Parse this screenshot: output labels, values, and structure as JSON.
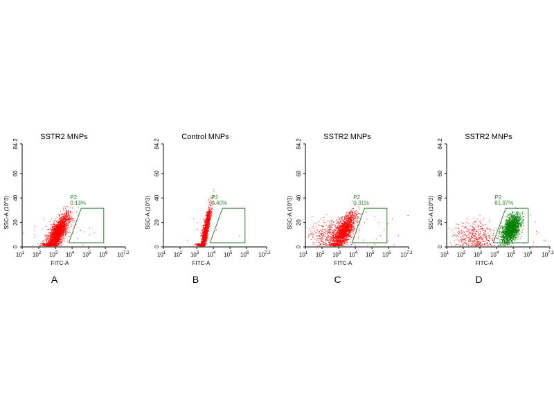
{
  "chart_data": [
    {
      "type": "scatter",
      "panel_label": "A",
      "title": "SSTR2 MNPs",
      "xlabel": "FITC-A",
      "ylabel": "SSC-A (10^3)",
      "xscale": "log10",
      "xlim_log10": [
        1,
        7.2
      ],
      "ylim": [
        0,
        84.2
      ],
      "xticks": [
        "10^1",
        "10^2",
        "10^3",
        "10^4",
        "10^5",
        "10^6",
        "10^7.2"
      ],
      "yticks": [
        0,
        20,
        40,
        60,
        84.2
      ],
      "gate": {
        "name": "P2",
        "percent": "0.13%",
        "polygon_log10x_y": [
          [
            3.8,
            3.4
          ],
          [
            4.55,
            31.6
          ],
          [
            5.9,
            31.6
          ],
          [
            5.9,
            3.4
          ]
        ]
      },
      "populations": [
        {
          "color": "#ff0000",
          "center_log10x": 3.1,
          "center_y": 11,
          "spread_log10x": 0.35,
          "spread_y": 5,
          "count": 2600,
          "tilt": 6
        },
        {
          "color": "#ff0000",
          "center_log10x": 3.0,
          "center_y": 12,
          "spread_log10x": 1.2,
          "spread_y": 8,
          "count": 40,
          "tilt": 0
        }
      ]
    },
    {
      "type": "scatter",
      "panel_label": "B",
      "title": "Control MNPs",
      "xlabel": "FITC-A",
      "ylabel": "SSC-A (10^3)",
      "xscale": "log10",
      "xlim_log10": [
        1,
        7.2
      ],
      "ylim": [
        0,
        84.2
      ],
      "xticks": [
        "10^1",
        "10^2",
        "10^3",
        "10^4",
        "10^5",
        "10^6",
        "10^7.2"
      ],
      "yticks": [
        0,
        20,
        40,
        60,
        84.2
      ],
      "gate": {
        "name": "P2",
        "percent": "0.40%",
        "polygon_log10x_y": [
          [
            3.8,
            3.4
          ],
          [
            4.55,
            31.6
          ],
          [
            5.9,
            31.6
          ],
          [
            5.9,
            3.4
          ]
        ]
      },
      "populations": [
        {
          "color": "#ff0000",
          "center_log10x": 3.5,
          "center_y": 12,
          "spread_log10x": 0.2,
          "spread_y": 5,
          "count": 1800,
          "tilt": 12
        },
        {
          "color": "#ff0000",
          "center_log10x": 3.6,
          "center_y": 12,
          "spread_log10x": 0.8,
          "spread_y": 6,
          "count": 15,
          "tilt": 0
        }
      ]
    },
    {
      "type": "scatter",
      "panel_label": "C",
      "title": "SSTR2 MNPs",
      "xlabel": "FITC-A",
      "ylabel": "SSC-A (10^3)",
      "xscale": "log10",
      "xlim_log10": [
        1,
        7.2
      ],
      "ylim": [
        0,
        84.2
      ],
      "xticks": [
        "10^1",
        "10^2",
        "10^3",
        "10^4",
        "10^5",
        "10^6",
        "10^7.2"
      ],
      "yticks": [
        0,
        20,
        40,
        60,
        84.2
      ],
      "gate": {
        "name": "P2",
        "percent": "0.31%",
        "polygon_log10x_y": [
          [
            3.8,
            3.4
          ],
          [
            4.55,
            31.6
          ],
          [
            5.9,
            31.6
          ],
          [
            5.9,
            3.4
          ]
        ]
      },
      "populations": [
        {
          "color": "#ff0000",
          "center_log10x": 3.3,
          "center_y": 13,
          "spread_log10x": 0.35,
          "spread_y": 5,
          "count": 1600,
          "tilt": 6
        },
        {
          "color": "#ff0000",
          "center_log10x": 2.6,
          "center_y": 10,
          "spread_log10x": 0.6,
          "spread_y": 6,
          "count": 500,
          "tilt": 0
        },
        {
          "color": "#ff0000",
          "center_log10x": 4.5,
          "center_y": 12,
          "spread_log10x": 1.2,
          "spread_y": 8,
          "count": 30,
          "tilt": 0
        }
      ]
    },
    {
      "type": "scatter",
      "panel_label": "D",
      "title": "SSTR2 MNPs",
      "xlabel": "FITC-A",
      "ylabel": "SSC-A (10^3)",
      "xscale": "log10",
      "xlim_log10": [
        1,
        7.2
      ],
      "ylim": [
        0,
        84.2
      ],
      "xticks": [
        "10^1",
        "10^2",
        "10^3",
        "10^4",
        "10^5",
        "10^6",
        "10^7.2"
      ],
      "yticks": [
        0,
        20,
        40,
        60,
        84.2
      ],
      "gate": {
        "name": "P2",
        "percent": "81.97%",
        "polygon_log10x_y": [
          [
            3.8,
            3.4
          ],
          [
            4.55,
            31.6
          ],
          [
            5.9,
            31.6
          ],
          [
            5.9,
            3.4
          ]
        ]
      },
      "populations": [
        {
          "color": "#008000",
          "center_log10x": 4.85,
          "center_y": 15,
          "spread_log10x": 0.28,
          "spread_y": 5,
          "count": 2000,
          "tilt": 3
        },
        {
          "color": "#ff0000",
          "center_log10x": 2.7,
          "center_y": 9,
          "spread_log10x": 0.6,
          "spread_y": 6,
          "count": 450,
          "tilt": 0
        },
        {
          "color": "#ff0000",
          "center_log10x": 5.8,
          "center_y": 12,
          "spread_log10x": 0.6,
          "spread_y": 7,
          "count": 20,
          "tilt": 0
        }
      ]
    }
  ]
}
